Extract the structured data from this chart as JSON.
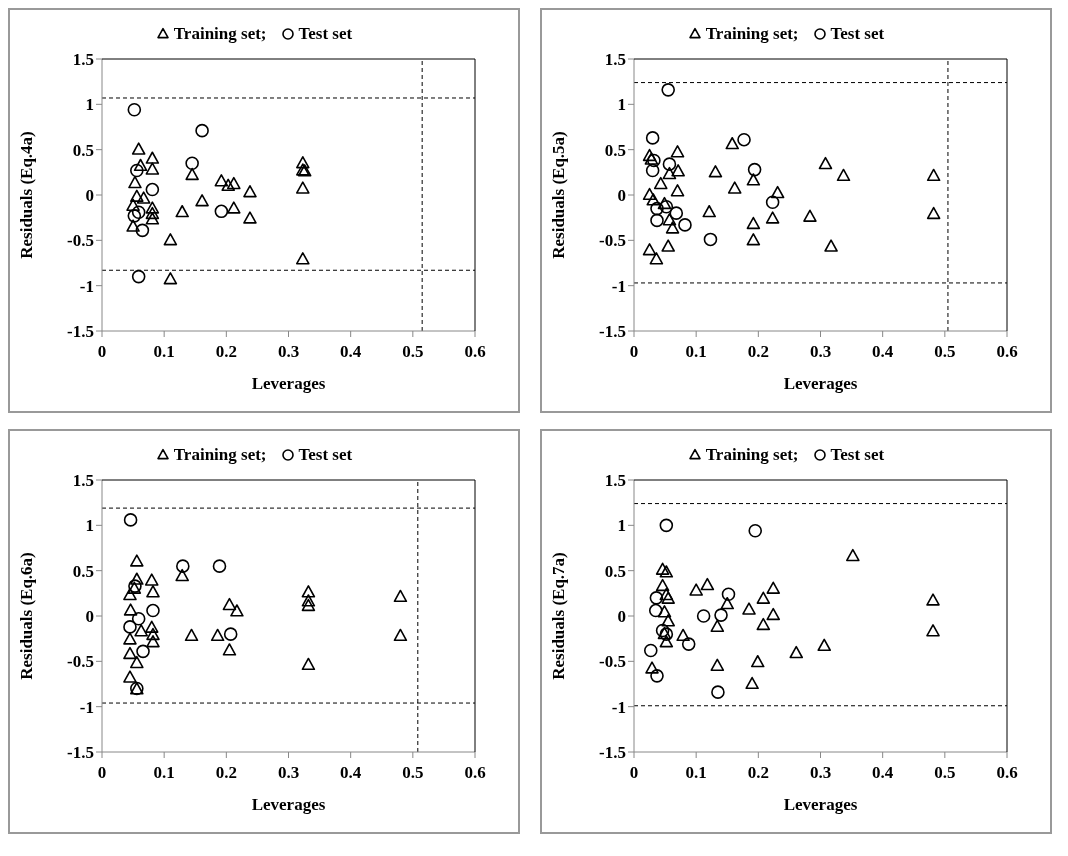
{
  "chart_data": [
    {
      "type": "scatter",
      "xlabel": "Leverages",
      "ylabel": "Residuals (Eq.4a)",
      "xlim": [
        0,
        0.6
      ],
      "xticks": [
        0,
        0.1,
        0.2,
        0.3,
        0.4,
        0.5,
        0.6
      ],
      "ylim": [
        -1.5,
        1.5
      ],
      "yticks": [
        -1.5,
        -1,
        -0.5,
        0,
        0.5,
        1,
        1.5
      ],
      "legend": "top",
      "series": [
        {
          "name": "Training set;",
          "color": "#000000",
          "marker": "triangle",
          "x": [
            0.059,
            0.081,
            0.081,
            0.062,
            0.053,
            0.056,
            0.05,
            0.05,
            0.067,
            0.081,
            0.081,
            0.081,
            0.11,
            0.11,
            0.129,
            0.145,
            0.161,
            0.192,
            0.203,
            0.212,
            0.212,
            0.238,
            0.238,
            0.323,
            0.323,
            0.326,
            0.323,
            0.323
          ],
          "values": [
            0.5,
            0.4,
            0.28,
            0.32,
            0.13,
            -0.02,
            -0.12,
            -0.35,
            -0.04,
            -0.15,
            -0.27,
            -0.21,
            -0.5,
            -0.93,
            -0.19,
            0.22,
            -0.07,
            0.15,
            0.1,
            0.12,
            -0.15,
            0.03,
            -0.26,
            0.35,
            0.27,
            0.26,
            0.07,
            -0.71
          ]
        },
        {
          "name": "Test set",
          "color": "#000000",
          "marker": "circle",
          "x": [
            0.052,
            0.161,
            0.145,
            0.081,
            0.192,
            0.052,
            0.065,
            0.059,
            0.056,
            0.059
          ],
          "values": [
            0.94,
            0.71,
            0.35,
            0.06,
            -0.18,
            -0.23,
            -0.39,
            -0.9,
            0.27,
            -0.19
          ]
        }
      ],
      "ref_lines": [
        {
          "axis": "y",
          "value": 1.07,
          "line_style": "dashed"
        },
        {
          "axis": "y",
          "value": -0.83,
          "line_style": "dashed"
        },
        {
          "axis": "x",
          "value": 0.515,
          "line_style": "dashed"
        }
      ]
    },
    {
      "type": "scatter",
      "xlabel": "Leverages",
      "ylabel": "Residuals (Eq.5a)",
      "xlim": [
        0,
        0.6
      ],
      "xticks": [
        0,
        0.1,
        0.2,
        0.3,
        0.4,
        0.5,
        0.6
      ],
      "ylim": [
        -1.5,
        1.5
      ],
      "yticks": [
        -1.5,
        -1,
        -0.5,
        0,
        0.5,
        1,
        1.5
      ],
      "legend": "top",
      "series": [
        {
          "name": "Training set;",
          "color": "#000000",
          "marker": "triangle",
          "x": [
            0.025,
            0.028,
            0.025,
            0.031,
            0.025,
            0.036,
            0.043,
            0.049,
            0.055,
            0.057,
            0.062,
            0.07,
            0.071,
            0.07,
            0.057,
            0.121,
            0.131,
            0.158,
            0.162,
            0.192,
            0.192,
            0.192,
            0.223,
            0.231,
            0.283,
            0.308,
            0.317,
            0.337,
            0.482,
            0.482
          ],
          "values": [
            0.43,
            0.39,
            0,
            -0.06,
            -0.61,
            -0.71,
            0.12,
            -0.1,
            -0.57,
            -0.28,
            -0.37,
            0.47,
            0.26,
            0.04,
            0.23,
            -0.19,
            0.25,
            0.56,
            0.07,
            0.16,
            -0.32,
            -0.5,
            -0.26,
            0.02,
            -0.24,
            0.34,
            -0.57,
            0.21,
            0.21,
            -0.21
          ]
        },
        {
          "name": "Test set",
          "color": "#000000",
          "marker": "circle",
          "x": [
            0.055,
            0.03,
            0.032,
            0.03,
            0.057,
            0.037,
            0.037,
            0.068,
            0.082,
            0.123,
            0.177,
            0.194,
            0.223,
            0.052
          ],
          "values": [
            1.16,
            0.63,
            0.38,
            0.27,
            0.34,
            -0.15,
            -0.28,
            -0.2,
            -0.33,
            -0.49,
            0.61,
            0.28,
            -0.08,
            -0.13
          ]
        }
      ],
      "ref_lines": [
        {
          "axis": "y",
          "value": 1.24,
          "line_style": "dashed"
        },
        {
          "axis": "y",
          "value": -0.97,
          "line_style": "dashed"
        },
        {
          "axis": "x",
          "value": 0.505,
          "line_style": "dashed"
        }
      ]
    },
    {
      "type": "scatter",
      "xlabel": "Leverages",
      "ylabel": "Residuals (Eq.6a)",
      "xlim": [
        0,
        0.6
      ],
      "xticks": [
        0,
        0.1,
        0.2,
        0.3,
        0.4,
        0.5,
        0.6
      ],
      "ylim": [
        -1.5,
        1.5
      ],
      "yticks": [
        -1.5,
        -1,
        -0.5,
        0,
        0.5,
        1,
        1.5
      ],
      "legend": "top",
      "series": [
        {
          "name": "Training set;",
          "color": "#000000",
          "marker": "triangle",
          "x": [
            0.056,
            0.056,
            0.045,
            0.046,
            0.052,
            0.08,
            0.082,
            0.08,
            0.082,
            0.082,
            0.063,
            0.045,
            0.045,
            0.056,
            0.045,
            0.056,
            0.129,
            0.144,
            0.186,
            0.205,
            0.217,
            0.205,
            0.332,
            0.332,
            0.332,
            0.332,
            0.48,
            0.48
          ],
          "values": [
            0.6,
            0.4,
            0.23,
            0.06,
            0.3,
            0.39,
            0.26,
            -0.13,
            -0.21,
            -0.29,
            -0.17,
            -0.26,
            -0.42,
            -0.52,
            -0.68,
            -0.81,
            0.44,
            -0.22,
            -0.22,
            0.12,
            0.05,
            -0.38,
            0.26,
            0.16,
            0.11,
            -0.54,
            0.21,
            -0.22
          ]
        },
        {
          "name": "Test set",
          "color": "#000000",
          "marker": "circle",
          "x": [
            0.046,
            0.13,
            0.189,
            0.082,
            0.207,
            0.066,
            0.045,
            0.056,
            0.053,
            0.059
          ],
          "values": [
            1.06,
            0.55,
            0.55,
            0.06,
            -0.2,
            -0.39,
            -0.12,
            -0.8,
            0.33,
            -0.03
          ]
        }
      ],
      "ref_lines": [
        {
          "axis": "y",
          "value": 1.19,
          "line_style": "dashed"
        },
        {
          "axis": "y",
          "value": -0.96,
          "line_style": "dashed"
        },
        {
          "axis": "x",
          "value": 0.508,
          "line_style": "dashed"
        }
      ]
    },
    {
      "type": "scatter",
      "xlabel": "Leverages",
      "ylabel": "Residuals (Eq.7a)",
      "xlim": [
        0,
        0.6
      ],
      "xticks": [
        0,
        0.1,
        0.2,
        0.3,
        0.4,
        0.5,
        0.6
      ],
      "ylim": [
        -1.5,
        1.5
      ],
      "yticks": [
        -1.5,
        -1,
        -0.5,
        0,
        0.5,
        1,
        1.5
      ],
      "legend": "top",
      "series": [
        {
          "name": "Training set;",
          "color": "#000000",
          "marker": "triangle",
          "x": [
            0.046,
            0.052,
            0.046,
            0.052,
            0.055,
            0.049,
            0.055,
            0.049,
            0.052,
            0.029,
            0.079,
            0.1,
            0.118,
            0.134,
            0.134,
            0.15,
            0.185,
            0.19,
            0.199,
            0.208,
            0.208,
            0.224,
            0.224,
            0.261,
            0.306,
            0.352,
            0.481,
            0.481
          ],
          "values": [
            0.51,
            0.48,
            0.33,
            0.23,
            0.19,
            0.04,
            -0.06,
            -0.2,
            -0.29,
            -0.58,
            -0.22,
            0.28,
            0.34,
            -0.12,
            -0.55,
            0.13,
            0.07,
            -0.75,
            -0.51,
            0.19,
            -0.1,
            0.3,
            0.01,
            -0.41,
            -0.33,
            0.66,
            0.17,
            -0.17
          ]
        },
        {
          "name": "Test set",
          "color": "#000000",
          "marker": "circle",
          "x": [
            0.052,
            0.195,
            0.152,
            0.112,
            0.14,
            0.036,
            0.035,
            0.027,
            0.037,
            0.088,
            0.135,
            0.046,
            0.052
          ],
          "values": [
            1,
            0.94,
            0.24,
            0,
            0.01,
            0.2,
            0.06,
            -0.38,
            -0.66,
            -0.31,
            -0.84,
            -0.16,
            -0.2
          ]
        }
      ],
      "ref_lines": [
        {
          "axis": "y",
          "value": 1.24,
          "line_style": "dashed"
        },
        {
          "axis": "y",
          "value": -0.99,
          "line_style": "dashed"
        }
      ]
    }
  ]
}
